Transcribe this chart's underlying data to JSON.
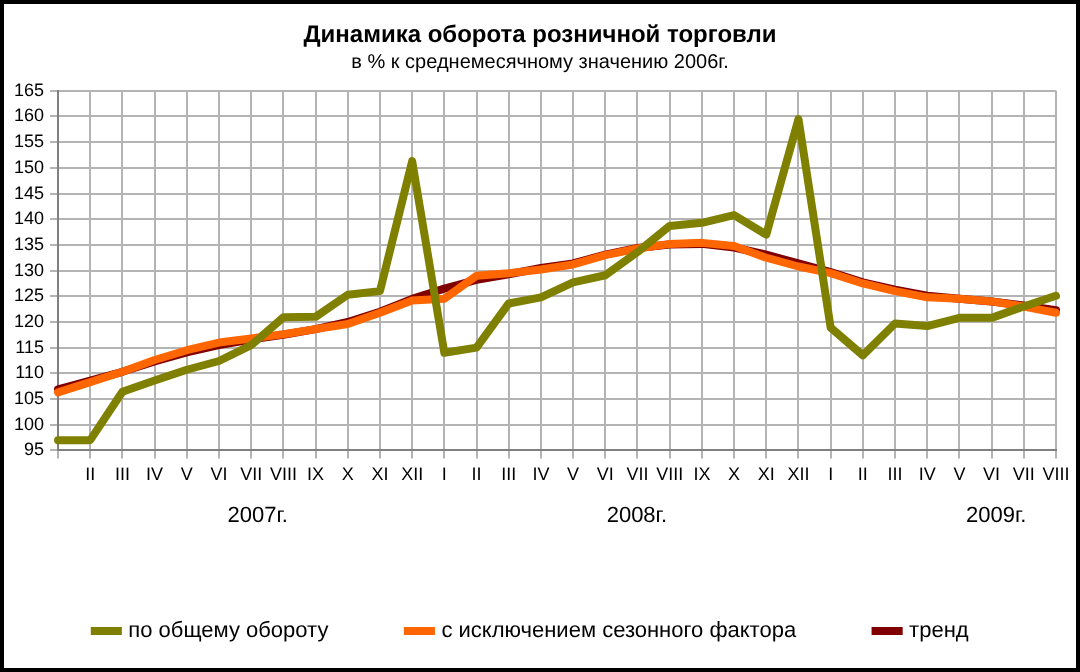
{
  "chart_data": {
    "type": "line",
    "title": "Динамика оборота розничной торговли",
    "subtitle": "в % к среднемесячному значению 2006г.",
    "categories": [
      null,
      "II",
      "III",
      "IV",
      "V",
      "VI",
      "VII",
      "VIII",
      "IX",
      "X",
      "XI",
      "XII",
      "I",
      "II",
      "III",
      "IV",
      "V",
      "VI",
      "VII",
      "VIII",
      "IX",
      "X",
      "XI",
      "XII",
      "I",
      "II",
      "III",
      "IV",
      "V",
      "VI",
      "VII",
      "VIII"
    ],
    "series": [
      {
        "name": "по общему обороту",
        "color": "#808000",
        "values": [
          97,
          97,
          106.4,
          108.6,
          110.7,
          112.4,
          115.5,
          120.9,
          121,
          125.3,
          126,
          151.3,
          114,
          115,
          123.6,
          124.8,
          127.7,
          129.1,
          133.6,
          138.7,
          139.3,
          140.8,
          137,
          159.5,
          118.9,
          113.5,
          119.7,
          119.2,
          120.8,
          120.8,
          123,
          125.1
        ]
      },
      {
        "name": "с исключением сезонного фактора",
        "color": "#ff6600",
        "values": [
          106.3,
          108.3,
          110.3,
          112.6,
          114.5,
          116,
          116.8,
          117.6,
          118.6,
          119.6,
          121.8,
          124.2,
          124.5,
          129,
          129.5,
          130.2,
          131.2,
          133,
          134.3,
          135.2,
          135.4,
          134.8,
          132.5,
          130.8,
          129.5,
          127.5,
          126,
          124.8,
          124.5,
          124,
          123,
          121.8
        ]
      },
      {
        "name": "тренд",
        "color": "#800000",
        "values": [
          106.9,
          108.6,
          110.3,
          112.3,
          114.1,
          115.5,
          116.6,
          117.5,
          118.6,
          120,
          122,
          124.5,
          126.5,
          128.2,
          129.3,
          130.5,
          131.4,
          133.1,
          134.4,
          135.1,
          135.2,
          134.5,
          133.1,
          131.4,
          129.7,
          127.7,
          126.3,
          125.1,
          124.5,
          124,
          123.2,
          122.3
        ]
      }
    ],
    "ylim": [
      95,
      165
    ],
    "yticks": [
      95,
      100,
      105,
      110,
      115,
      120,
      125,
      130,
      135,
      140,
      145,
      150,
      155,
      160,
      165
    ],
    "annotations": [
      "2007г.",
      "2008г.",
      "2009г."
    ],
    "grid": true,
    "legend": "bottom",
    "marker": "none",
    "line_style": "solid"
  }
}
